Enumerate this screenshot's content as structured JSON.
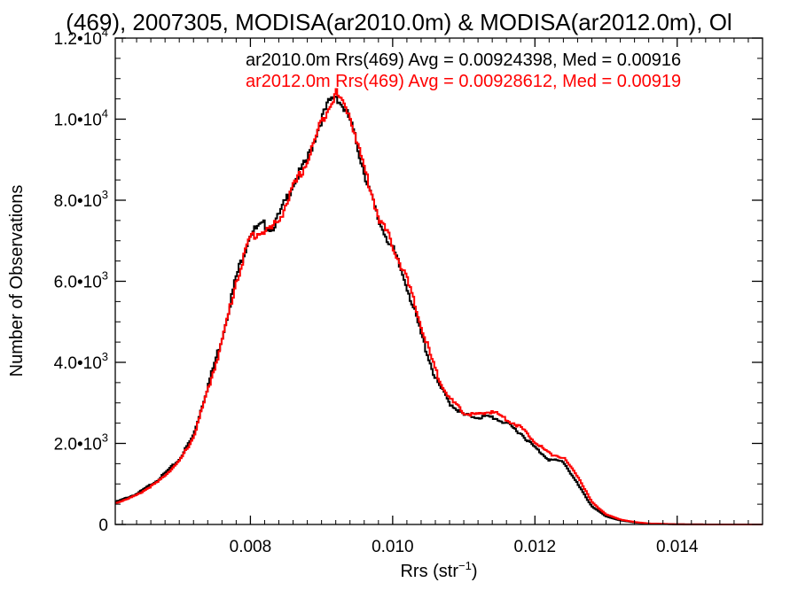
{
  "chart_data": {
    "type": "line",
    "title": "(469), 2007305, MODISA(ar2010.0m) & MODISA(ar2012.0m), Ol",
    "xlabel": "Rrs (str",
    "xlabel_sup": "−1",
    "xlabel_close": ")",
    "ylabel": "Number of Observations",
    "xlim": [
      0.0061,
      0.0152
    ],
    "ylim": [
      0,
      12000
    ],
    "x_ticks": [
      {
        "value": 0.008,
        "label": "0.008"
      },
      {
        "value": 0.01,
        "label": "0.010"
      },
      {
        "value": 0.012,
        "label": "0.012"
      },
      {
        "value": 0.014,
        "label": "0.014"
      }
    ],
    "y_ticks": [
      {
        "value": 0,
        "mant": "0",
        "exp": ""
      },
      {
        "value": 2000,
        "mant": "2.0•10",
        "exp": "3"
      },
      {
        "value": 4000,
        "mant": "4.0•10",
        "exp": "3"
      },
      {
        "value": 6000,
        "mant": "6.0•10",
        "exp": "3"
      },
      {
        "value": 8000,
        "mant": "8.0•10",
        "exp": "3"
      },
      {
        "value": 10000,
        "mant": "1.0•10",
        "exp": "4"
      },
      {
        "value": 12000,
        "mant": "1.2•10",
        "exp": "4"
      }
    ],
    "series": [
      {
        "name": "ar2010.0m",
        "legend_text": "ar2010.0m Rrs(469) Avg = 0.00924398, Med = 0.00916",
        "color": "#000000",
        "x": [
          0.0061,
          0.0064,
          0.0067,
          0.007,
          0.0072,
          0.0074,
          0.0076,
          0.0078,
          0.008,
          0.0082,
          0.0083,
          0.0084,
          0.0086,
          0.0088,
          0.009,
          0.0091,
          0.0092,
          0.0093,
          0.0094,
          0.0096,
          0.0098,
          0.01,
          0.0102,
          0.0104,
          0.0106,
          0.0108,
          0.011,
          0.0112,
          0.0114,
          0.0116,
          0.0118,
          0.012,
          0.0122,
          0.0124,
          0.0126,
          0.0128,
          0.013,
          0.0132,
          0.0134,
          0.0136,
          0.014,
          0.0145,
          0.0152
        ],
        "y": [
          550,
          750,
          1100,
          1600,
          2200,
          3400,
          4600,
          6100,
          7200,
          7400,
          7300,
          7600,
          8400,
          9000,
          10000,
          10400,
          10600,
          10300,
          10000,
          8700,
          7500,
          6800,
          5900,
          4700,
          3600,
          3000,
          2700,
          2650,
          2650,
          2500,
          2250,
          1900,
          1600,
          1550,
          1000,
          450,
          200,
          100,
          50,
          20,
          5,
          0,
          0
        ]
      },
      {
        "name": "ar2012.0m",
        "legend_text": "ar2012.0m Rrs(469) Avg = 0.00928612, Med = 0.00919",
        "color": "#ff0000",
        "x": [
          0.0061,
          0.0064,
          0.0067,
          0.007,
          0.0072,
          0.0074,
          0.0076,
          0.0078,
          0.008,
          0.0082,
          0.0083,
          0.0084,
          0.0086,
          0.0088,
          0.009,
          0.0091,
          0.0092,
          0.0093,
          0.0094,
          0.0096,
          0.0098,
          0.01,
          0.0102,
          0.0104,
          0.0106,
          0.0108,
          0.011,
          0.0112,
          0.0114,
          0.0116,
          0.0118,
          0.012,
          0.0122,
          0.0124,
          0.0126,
          0.0128,
          0.013,
          0.0132,
          0.0134,
          0.0136,
          0.014,
          0.0145,
          0.0152
        ],
        "y": [
          520,
          720,
          1050,
          1550,
          2150,
          3300,
          4500,
          6000,
          7100,
          7250,
          7300,
          7500,
          8300,
          8950,
          9950,
          10300,
          10650,
          10400,
          10100,
          8800,
          7600,
          6900,
          6050,
          4900,
          3800,
          3100,
          2750,
          2700,
          2800,
          2600,
          2400,
          2050,
          1750,
          1650,
          1200,
          550,
          250,
          120,
          60,
          25,
          5,
          0,
          0
        ]
      }
    ],
    "grid": false,
    "legend_position": "top"
  }
}
